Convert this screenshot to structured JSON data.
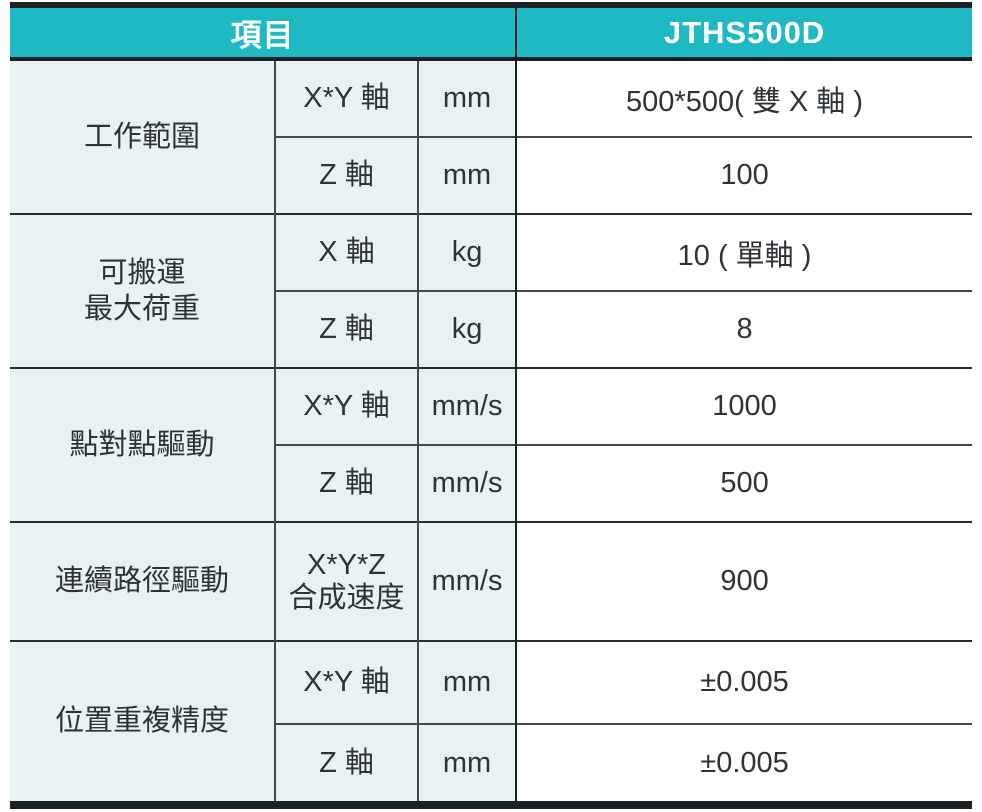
{
  "table": {
    "header": {
      "item_label": "項目",
      "model_label": "JTHS500D"
    },
    "groups": [
      {
        "name": "工作範圍",
        "rows": [
          {
            "axis": "X*Y 軸",
            "unit": "mm",
            "value": "500*500( 雙 X 軸 )"
          },
          {
            "axis": "Z 軸",
            "unit": "mm",
            "value": "100"
          }
        ]
      },
      {
        "name": "可搬運\n最大荷重",
        "rows": [
          {
            "axis": "X 軸",
            "unit": "kg",
            "value": "10 ( 單軸 )"
          },
          {
            "axis": "Z 軸",
            "unit": "kg",
            "value": "8"
          }
        ]
      },
      {
        "name": "點對點驅動",
        "rows": [
          {
            "axis": "X*Y 軸",
            "unit": "mm/s",
            "value": "1000"
          },
          {
            "axis": "Z 軸",
            "unit": "mm/s",
            "value": "500"
          }
        ]
      },
      {
        "name": "連續路徑驅動",
        "rows": [
          {
            "axis": "X*Y*Z\n合成速度",
            "unit": "mm/s",
            "value": "900"
          }
        ]
      },
      {
        "name": "位置重複精度",
        "rows": [
          {
            "axis": "X*Y 軸",
            "unit": "mm",
            "value": "±0.005"
          },
          {
            "axis": "Z 軸",
            "unit": "mm",
            "value": "±0.005"
          }
        ]
      }
    ],
    "colors": {
      "header_bg": "#1fb9c4",
      "header_text": "#ffffff",
      "row_bg": "#e8f2f5",
      "value_bg": "#ffffff",
      "border_dark": "#1b2024",
      "border_light": "#43484d",
      "text": "#2e3338"
    }
  }
}
